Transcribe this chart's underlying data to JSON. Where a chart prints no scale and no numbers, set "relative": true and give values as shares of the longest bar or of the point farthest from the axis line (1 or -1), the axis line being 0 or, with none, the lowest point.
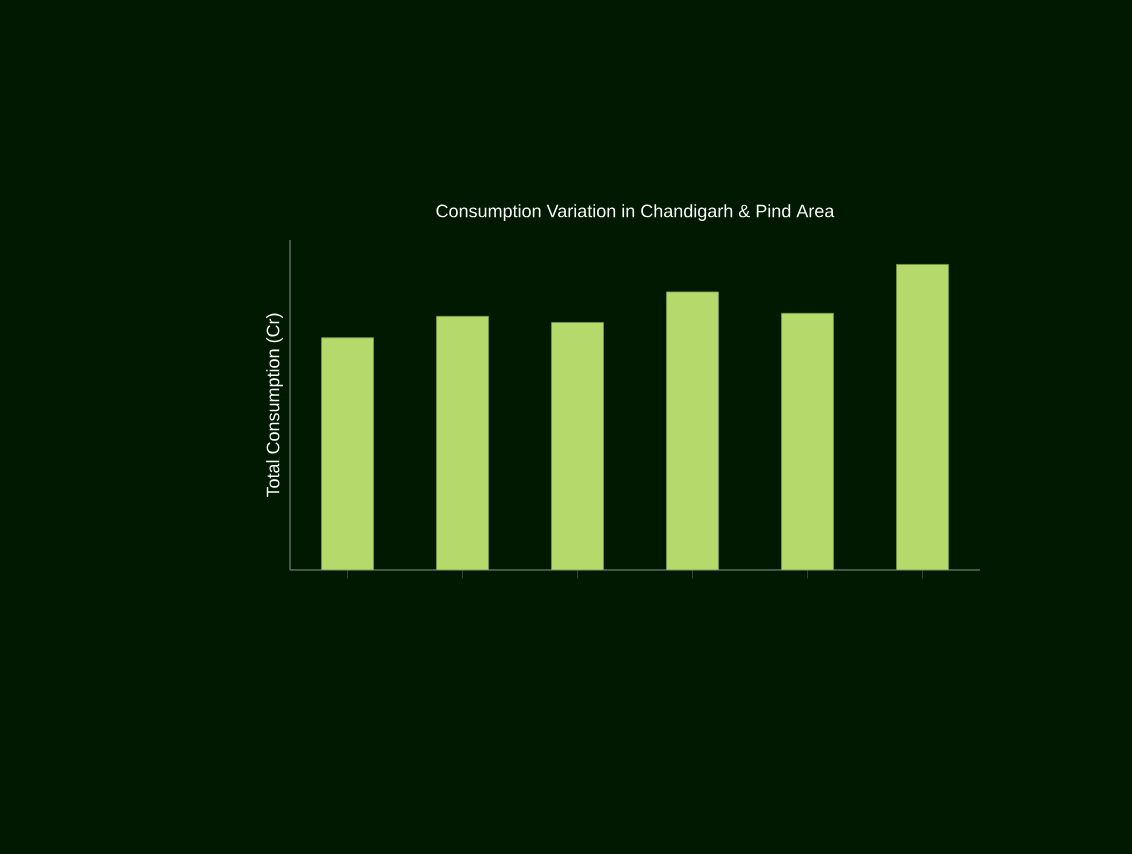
{
  "chart_data": {
    "type": "bar",
    "title": "Consumption Variation in Chandigarh & Pind Area",
    "ylabel": "Total Consumption (Cr)",
    "categories": [
      null,
      null,
      null,
      null,
      null,
      null
    ],
    "values": [
      0.76,
      0.83,
      0.81,
      0.91,
      0.84,
      1.0
    ],
    "color": "#b5d96a",
    "relative": true
  }
}
